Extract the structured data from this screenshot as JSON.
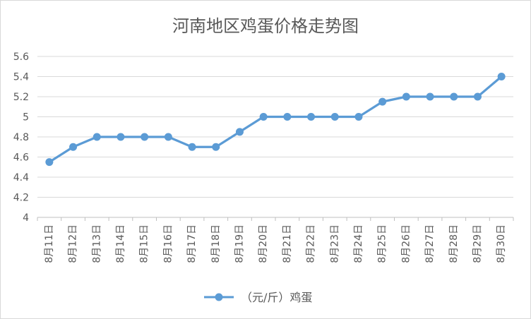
{
  "chart_data": {
    "type": "line",
    "title": "河南地区鸡蛋价格走势图",
    "xlabel": "",
    "ylabel": "",
    "categories": [
      "8月11日",
      "8月12日",
      "8月13日",
      "8月14日",
      "8月15日",
      "8月16日",
      "8月17日",
      "8月18日",
      "8月19日",
      "8月20日",
      "8月21日",
      "8月22日",
      "8月23日",
      "8月24日",
      "8月25日",
      "8月26日",
      "8月27日",
      "8月28日",
      "8月29日",
      "8月30日"
    ],
    "series": [
      {
        "name": "（元/斤）鸡蛋",
        "values": [
          4.55,
          4.7,
          4.8,
          4.8,
          4.8,
          4.8,
          4.7,
          4.7,
          4.85,
          5.0,
          5.0,
          5.0,
          5.0,
          5.0,
          5.15,
          5.2,
          5.2,
          5.2,
          5.2,
          5.4
        ],
        "color": "#5b9bd5"
      }
    ],
    "ylim": [
      4,
      5.6
    ],
    "yticks": [
      "4",
      "4.2",
      "4.4",
      "4.6",
      "4.8",
      "5",
      "5.2",
      "5.4",
      "5.6"
    ],
    "grid": true,
    "legend_position": "bottom"
  }
}
